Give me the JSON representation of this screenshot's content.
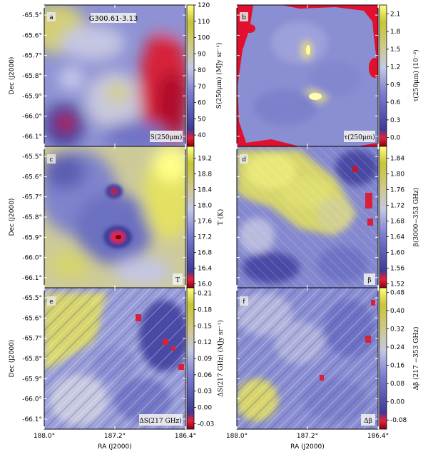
{
  "chart_data": [
    {
      "type": "heatmap",
      "panel": "a",
      "label": "S(250μm)",
      "field_name": "G300.61-3.13",
      "colorbar_label": "S(250μm) (MJy sr⁻¹)",
      "colorbar_ticks": [
        "120",
        "110",
        "100",
        "90",
        "80",
        "70",
        "60",
        "50",
        "40"
      ],
      "colorbar_range": [
        33,
        120
      ],
      "colormap": [
        "#8b0013",
        "#e8213c",
        "#3d3b96",
        "#7b7fd2",
        "#c5c9e4",
        "#d0c98c",
        "#c8c636",
        "#ffff80"
      ]
    },
    {
      "type": "heatmap",
      "panel": "b",
      "label": "τ(250μm)",
      "colorbar_label": "τ(250μm) (10⁻³)",
      "colorbar_ticks": [
        "2.1",
        "1.8",
        "1.5",
        "1.2",
        "0.9",
        "0.6",
        "0.3",
        "0.0"
      ],
      "colorbar_range": [
        -0.15,
        2.25
      ],
      "colormap": [
        "#8b0013",
        "#e8213c",
        "#3d3b96",
        "#7b7fd2",
        "#c5c9e4",
        "#d0c98c",
        "#c8c636",
        "#ffff80"
      ]
    },
    {
      "type": "heatmap",
      "panel": "c",
      "label": "T",
      "colorbar_label": "T (K)",
      "colorbar_ticks": [
        "19.2",
        "18.8",
        "18.4",
        "18.0",
        "17.6",
        "17.2",
        "16.8",
        "16.4",
        "16.0"
      ],
      "colorbar_range": [
        15.9,
        19.5
      ],
      "colormap": [
        "#8b0013",
        "#e8213c",
        "#3d3b96",
        "#7b7fd2",
        "#c5c9e4",
        "#d0c98c",
        "#c8c636",
        "#ffff80"
      ]
    },
    {
      "type": "heatmap",
      "panel": "d",
      "label": "β",
      "colorbar_label": "β(3000−353 GHz)",
      "colorbar_ticks": [
        "1.84",
        "1.80",
        "1.76",
        "1.72",
        "1.68",
        "1.64",
        "1.60",
        "1.56",
        "1.52"
      ],
      "colorbar_range": [
        1.51,
        1.87
      ],
      "colormap": [
        "#8b0013",
        "#e8213c",
        "#3d3b96",
        "#7b7fd2",
        "#c5c9e4",
        "#d0c98c",
        "#c8c636",
        "#ffff80"
      ]
    },
    {
      "type": "heatmap",
      "panel": "e",
      "label": "ΔS(217 GHz)",
      "colorbar_label": "ΔS(217 GHz) (MJy sr⁻¹)",
      "colorbar_ticks": [
        "0.21",
        "0.18",
        "0.15",
        "0.12",
        "0.09",
        "0.06",
        "0.03",
        "0.00",
        "-0.03"
      ],
      "colorbar_range": [
        -0.04,
        0.22
      ],
      "colormap": [
        "#8b0013",
        "#e8213c",
        "#3d3b96",
        "#7b7fd2",
        "#c5c9e4",
        "#d0c98c",
        "#c8c636",
        "#ffff80"
      ]
    },
    {
      "type": "heatmap",
      "panel": "f",
      "label": "Δβ",
      "colorbar_label": "Δβ (217 −353 GHz)",
      "colorbar_ticks": [
        "0.48",
        "0.40",
        "0.32",
        "0.24",
        "0.16",
        "0.08",
        "0.00",
        "-0.08"
      ],
      "colorbar_range": [
        -0.12,
        0.5
      ],
      "colormap": [
        "#8b0013",
        "#e8213c",
        "#3d3b96",
        "#7b7fd2",
        "#c5c9e4",
        "#d0c98c",
        "#c8c636",
        "#ffff80"
      ]
    }
  ],
  "axes": {
    "ylabel": "Dec (J2000)",
    "xlabel": "RA (J2000)",
    "y_ticks": [
      "-65.5°",
      "-65.6°",
      "-65.7°",
      "-65.8°",
      "-65.9°",
      "-66.0°",
      "-66.1°"
    ],
    "x_ticks": [
      "188.0°",
      "187.2°",
      "186.4°"
    ]
  }
}
